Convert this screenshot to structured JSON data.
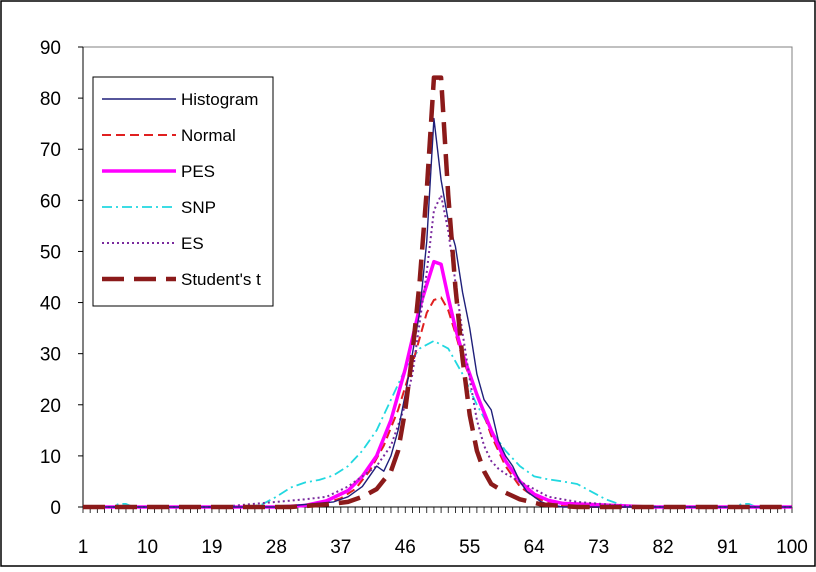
{
  "chart_data": {
    "type": "line",
    "title": "",
    "xlabel": "",
    "ylabel": "",
    "xlim": [
      1,
      100
    ],
    "ylim": [
      0,
      90
    ],
    "y_ticks": [
      0,
      10,
      20,
      30,
      40,
      50,
      60,
      70,
      80,
      90
    ],
    "x_tick_labels": [
      "1",
      "10",
      "19",
      "28",
      "37",
      "46",
      "55",
      "64",
      "73",
      "82",
      "91",
      "100"
    ],
    "grid": false,
    "legend_position": "top-left",
    "series": [
      {
        "name": "Histogram",
        "color": "#1f1f7a",
        "style": "solid-thin",
        "points": [
          [
            1,
            0
          ],
          [
            8,
            0
          ],
          [
            20,
            0
          ],
          [
            28,
            0
          ],
          [
            36,
            1
          ],
          [
            38,
            2
          ],
          [
            40,
            4
          ],
          [
            41,
            6
          ],
          [
            42,
            8
          ],
          [
            43,
            7
          ],
          [
            44,
            10
          ],
          [
            45,
            15
          ],
          [
            46,
            22
          ],
          [
            47,
            30
          ],
          [
            48,
            38
          ],
          [
            49,
            52
          ],
          [
            50,
            76
          ],
          [
            51,
            64
          ],
          [
            52,
            56
          ],
          [
            53,
            51
          ],
          [
            54,
            42
          ],
          [
            55,
            35
          ],
          [
            56,
            26
          ],
          [
            57,
            21
          ],
          [
            58,
            19
          ],
          [
            59,
            13
          ],
          [
            60,
            10
          ],
          [
            61,
            8
          ],
          [
            62,
            5
          ],
          [
            63,
            3
          ],
          [
            64,
            2
          ],
          [
            65,
            1
          ],
          [
            66,
            0.5
          ],
          [
            68,
            0
          ],
          [
            80,
            0
          ],
          [
            100,
            0
          ]
        ]
      },
      {
        "name": "Normal",
        "color": "#e02020",
        "style": "dashed",
        "points": [
          [
            1,
            0
          ],
          [
            20,
            0
          ],
          [
            28,
            0
          ],
          [
            32,
            0.2
          ],
          [
            35,
            0.8
          ],
          [
            37,
            1.7
          ],
          [
            39,
            3.5
          ],
          [
            41,
            7
          ],
          [
            43,
            12
          ],
          [
            45,
            19
          ],
          [
            47,
            28
          ],
          [
            48,
            33
          ],
          [
            49,
            38
          ],
          [
            50,
            40.5
          ],
          [
            51,
            41
          ],
          [
            52,
            38.5
          ],
          [
            53,
            34
          ],
          [
            54,
            29
          ],
          [
            56,
            22
          ],
          [
            58,
            14
          ],
          [
            60,
            8
          ],
          [
            62,
            4
          ],
          [
            64,
            2
          ],
          [
            66,
            0.8
          ],
          [
            68,
            0.2
          ],
          [
            72,
            0
          ],
          [
            100,
            0
          ]
        ]
      },
      {
        "name": "PES",
        "color": "#ff00ff",
        "style": "solid-thick",
        "points": [
          [
            1,
            0
          ],
          [
            20,
            0
          ],
          [
            28,
            0
          ],
          [
            32,
            0.3
          ],
          [
            35,
            1.2
          ],
          [
            38,
            3.2
          ],
          [
            40,
            6
          ],
          [
            42,
            10
          ],
          [
            44,
            17
          ],
          [
            46,
            27
          ],
          [
            48,
            39
          ],
          [
            50,
            48
          ],
          [
            51,
            47.5
          ],
          [
            52,
            41
          ],
          [
            53,
            35
          ],
          [
            54,
            30
          ],
          [
            56,
            22
          ],
          [
            58,
            15
          ],
          [
            60,
            9
          ],
          [
            62,
            5
          ],
          [
            64,
            2.5
          ],
          [
            66,
            1.3
          ],
          [
            68,
            0.7
          ],
          [
            72,
            0.5
          ],
          [
            77,
            0.2
          ],
          [
            80,
            0
          ],
          [
            100,
            0
          ]
        ]
      },
      {
        "name": "SNP",
        "color": "#22d8e0",
        "style": "dash-dot",
        "points": [
          [
            1,
            0
          ],
          [
            5,
            0
          ],
          [
            6,
            0.6
          ],
          [
            7,
            0.6
          ],
          [
            8,
            0
          ],
          [
            20,
            0
          ],
          [
            24,
            0
          ],
          [
            26,
            0.5
          ],
          [
            28,
            2
          ],
          [
            30,
            3.8
          ],
          [
            32,
            4.8
          ],
          [
            34,
            5.3
          ],
          [
            36,
            6.2
          ],
          [
            38,
            8
          ],
          [
            40,
            11
          ],
          [
            42,
            15
          ],
          [
            44,
            21
          ],
          [
            46,
            27
          ],
          [
            48,
            31
          ],
          [
            50,
            32.5
          ],
          [
            52,
            31
          ],
          [
            54,
            26
          ],
          [
            56,
            20
          ],
          [
            58,
            15
          ],
          [
            60,
            11
          ],
          [
            62,
            8
          ],
          [
            64,
            6
          ],
          [
            66,
            5.4
          ],
          [
            68,
            5
          ],
          [
            70,
            4.5
          ],
          [
            72,
            3
          ],
          [
            74,
            1.5
          ],
          [
            76,
            0.5
          ],
          [
            78,
            0
          ],
          [
            92,
            0
          ],
          [
            93,
            0.6
          ],
          [
            94,
            0.6
          ],
          [
            95,
            0
          ],
          [
            100,
            0
          ]
        ]
      },
      {
        "name": "ES",
        "color": "#7a2a9e",
        "style": "dotted",
        "points": [
          [
            1,
            0
          ],
          [
            20,
            0
          ],
          [
            24,
            0.5
          ],
          [
            28,
            1
          ],
          [
            32,
            1.5
          ],
          [
            35,
            2
          ],
          [
            38,
            4
          ],
          [
            40,
            6
          ],
          [
            42,
            8
          ],
          [
            44,
            12
          ],
          [
            46,
            20
          ],
          [
            47,
            26
          ],
          [
            48,
            36
          ],
          [
            49,
            46
          ],
          [
            50,
            58
          ],
          [
            51,
            61
          ],
          [
            52,
            54
          ],
          [
            53,
            44
          ],
          [
            54,
            34
          ],
          [
            55,
            25
          ],
          [
            56,
            17
          ],
          [
            57,
            12
          ],
          [
            58,
            9
          ],
          [
            59,
            7.5
          ],
          [
            60,
            6.5
          ],
          [
            62,
            5
          ],
          [
            64,
            3.5
          ],
          [
            66,
            2
          ],
          [
            70,
            1
          ],
          [
            76,
            0.3
          ],
          [
            82,
            0
          ],
          [
            100,
            0
          ]
        ]
      },
      {
        "name": "Student's t",
        "color": "#8b1a1a",
        "style": "long-dash-thick",
        "points": [
          [
            1,
            0
          ],
          [
            20,
            0
          ],
          [
            30,
            0
          ],
          [
            35,
            0.5
          ],
          [
            38,
            1
          ],
          [
            40,
            2
          ],
          [
            42,
            3.5
          ],
          [
            44,
            7
          ],
          [
            45,
            11
          ],
          [
            46,
            19
          ],
          [
            47,
            30
          ],
          [
            48,
            44
          ],
          [
            49,
            62
          ],
          [
            50,
            84
          ],
          [
            51,
            84
          ],
          [
            52,
            61
          ],
          [
            53,
            43
          ],
          [
            54,
            29
          ],
          [
            55,
            18
          ],
          [
            56,
            11
          ],
          [
            57,
            7
          ],
          [
            58,
            4.5
          ],
          [
            60,
            2.8
          ],
          [
            62,
            1.5
          ],
          [
            65,
            0.5
          ],
          [
            70,
            0
          ],
          [
            100,
            0
          ]
        ]
      }
    ]
  }
}
